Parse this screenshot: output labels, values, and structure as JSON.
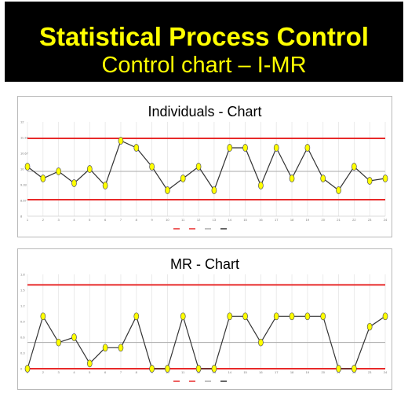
{
  "banner": {
    "title": "Statistical Process Control",
    "subtitle": "Control chart –  I-MR",
    "background": "#000000",
    "text_color": "#ffff00"
  },
  "chart_data": [
    {
      "type": "line",
      "title": "Individuals - Chart",
      "x": [
        1,
        2,
        3,
        4,
        5,
        6,
        7,
        8,
        9,
        10,
        11,
        12,
        13,
        14,
        15,
        16,
        17,
        18,
        19,
        20,
        21,
        22,
        23,
        24
      ],
      "series": [
        {
          "role": "data",
          "values": [
            10.1,
            9.6,
            9.9,
            9.4,
            10.0,
            9.3,
            11.2,
            10.9,
            10.1,
            9.1,
            9.6,
            10.1,
            9.1,
            10.9,
            10.9,
            9.3,
            10.9,
            9.6,
            10.9,
            9.6,
            9.1,
            10.1,
            9.5,
            9.6
          ]
        }
      ],
      "limits": {
        "ucl": 11.3,
        "lcl": 8.7,
        "center": 9.9
      },
      "ylim": [
        8.0,
        12.0
      ],
      "line_colors": {
        "limits": "#e82a2a",
        "center": "#aaaaaa",
        "data": "#333333",
        "marker_fill": "#ffff00"
      },
      "grid": true,
      "legend_placement": "bottom"
    },
    {
      "type": "line",
      "title": "MR - Chart",
      "x": [
        1,
        2,
        3,
        4,
        5,
        6,
        7,
        8,
        9,
        10,
        11,
        12,
        13,
        14,
        15,
        16,
        17,
        18,
        19,
        20,
        21,
        22,
        23,
        24
      ],
      "series": [
        {
          "role": "data",
          "values": [
            0.0,
            1.0,
            0.5,
            0.6,
            0.1,
            0.4,
            0.4,
            1.0,
            0.0,
            0.0,
            1.0,
            0.0,
            0.0,
            1.0,
            1.0,
            0.5,
            1.0,
            1.0,
            1.0,
            1.0,
            0.0,
            0.0,
            0.8,
            1.0
          ]
        }
      ],
      "limits": {
        "ucl": 1.6,
        "lcl": 0.0,
        "center": 0.5
      },
      "ylim": [
        0.0,
        1.8
      ],
      "line_colors": {
        "limits": "#e82a2a",
        "center": "#aaaaaa",
        "data": "#333333",
        "marker_fill": "#ffff00"
      },
      "grid": true,
      "legend_placement": "bottom"
    }
  ]
}
